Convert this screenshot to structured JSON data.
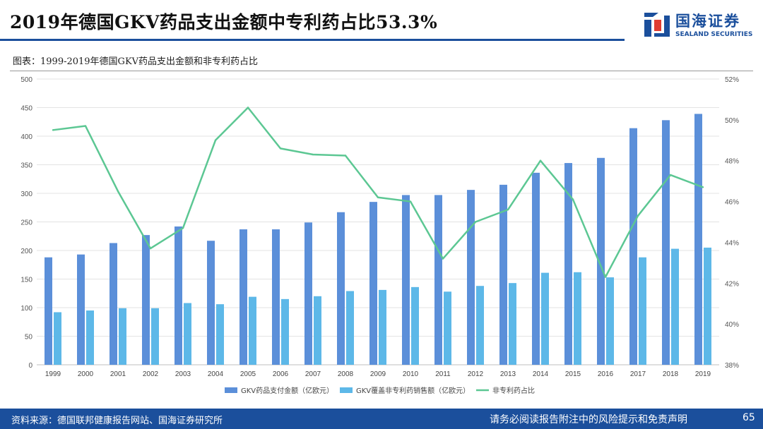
{
  "header": {
    "title": "2019年德国GKV药品支出金额中专利药占比53.3%",
    "logo_cn": "国海证券",
    "logo_en": "SEALAND SECURITIES"
  },
  "subtitle": "图表：1999-2019年德国GKV药品支出金额和非专利药占比",
  "chart_data": {
    "type": "bar",
    "categories": [
      "1999",
      "2000",
      "2001",
      "2002",
      "2003",
      "2004",
      "2005",
      "2006",
      "2007",
      "2008",
      "2009",
      "2010",
      "2011",
      "2012",
      "2013",
      "2014",
      "2015",
      "2016",
      "2017",
      "2018",
      "2019"
    ],
    "series": [
      {
        "name": "GKV药品支付金额（亿欧元）",
        "type": "bar",
        "axis": "left",
        "color": "#5b8fd9",
        "values": [
          188,
          193,
          213,
          227,
          242,
          217,
          237,
          237,
          249,
          267,
          285,
          297,
          297,
          306,
          315,
          336,
          353,
          362,
          414,
          428,
          439
        ]
      },
      {
        "name": "GKV覆盖非专利药销售额（亿欧元）",
        "type": "bar",
        "axis": "left",
        "color": "#5db8e8",
        "values": [
          92,
          95,
          99,
          99,
          108,
          106,
          119,
          115,
          120,
          129,
          131,
          136,
          128,
          138,
          143,
          161,
          162,
          153,
          188,
          203,
          205
        ]
      },
      {
        "name": "非专利药占比",
        "type": "line",
        "axis": "right",
        "color": "#5cc793",
        "values": [
          49.5,
          49.7,
          46.5,
          43.7,
          44.7,
          49.0,
          50.6,
          48.6,
          48.3,
          48.25,
          46.2,
          46.0,
          43.2,
          45.0,
          45.6,
          48.0,
          46.1,
          42.3,
          45.3,
          47.3,
          46.7
        ]
      }
    ],
    "y_left": {
      "min": 0,
      "max": 500,
      "step": 50,
      "ticks": [
        "0",
        "50",
        "100",
        "150",
        "200",
        "250",
        "300",
        "350",
        "400",
        "450",
        "500"
      ]
    },
    "y_right": {
      "min": 38,
      "max": 52,
      "step": 2,
      "ticks": [
        "38%",
        "40%",
        "42%",
        "44%",
        "46%",
        "48%",
        "50%",
        "52%"
      ]
    },
    "grid": true,
    "legend_position": "bottom"
  },
  "footer": {
    "source": "资料来源：德国联邦健康报告网站、国海证券研究所",
    "disclaimer": "请务必阅读报告附注中的风险提示和免责声明",
    "page": "65"
  },
  "colors": {
    "brand": "#1b4f9c",
    "bar1": "#5b8fd9",
    "bar2": "#5db8e8",
    "line": "#5cc793"
  }
}
